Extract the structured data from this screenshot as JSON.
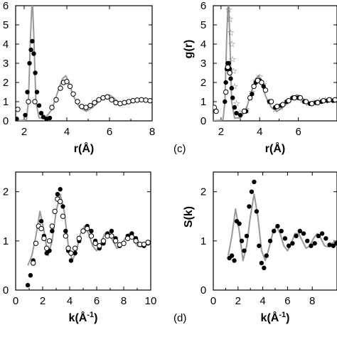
{
  "chart_data": [
    {
      "type": "scatter",
      "panel_label": "",
      "xlabel": "r(Å)",
      "ylabel": "",
      "xlim": [
        1.6,
        8.0
      ],
      "ylim": [
        0,
        6
      ],
      "xticks": [
        2,
        4,
        6,
        8
      ],
      "yticks": [
        0,
        1,
        2,
        3,
        4,
        5,
        6
      ],
      "series": [
        {
          "style": "line",
          "color": "#999999",
          "x": [
            1.6,
            2.1,
            2.2,
            2.3,
            2.38,
            2.45,
            2.55,
            2.7,
            3.0,
            3.3,
            3.6,
            3.8,
            3.95,
            4.1,
            4.3,
            4.6,
            4.9,
            5.2,
            5.5,
            5.8,
            6.0,
            6.2,
            6.5,
            6.8,
            7.1,
            7.4,
            7.7,
            8.0
          ],
          "y": [
            0,
            0.05,
            1.0,
            4.5,
            6.5,
            4.5,
            1.0,
            0.15,
            0.15,
            0.6,
            1.6,
            2.2,
            2.35,
            2.0,
            1.3,
            0.7,
            0.5,
            0.7,
            1.0,
            1.3,
            1.35,
            1.2,
            0.9,
            0.9,
            1.0,
            1.1,
            1.1,
            1.05
          ]
        },
        {
          "style": "filled",
          "color": "#000000",
          "x": [
            1.65,
            2.05,
            2.15,
            2.25,
            2.32,
            2.38,
            2.45,
            2.52,
            2.6,
            2.7,
            2.8,
            2.9,
            3.05,
            3.2
          ],
          "y": [
            0.1,
            0.3,
            1.5,
            3.0,
            3.7,
            4.15,
            3.5,
            2.5,
            1.5,
            0.8,
            0.4,
            0.2,
            0.1,
            0.15
          ]
        },
        {
          "style": "open",
          "color": "#000000",
          "x": [
            1.7,
            2.2,
            2.5,
            3.3,
            3.5,
            3.7,
            3.85,
            4.0,
            4.15,
            4.3,
            4.5,
            4.7,
            4.9,
            5.1,
            5.3,
            5.5,
            5.7,
            5.9,
            6.1,
            6.3,
            6.5,
            6.7,
            6.9,
            7.1,
            7.3,
            7.5,
            7.7,
            7.9
          ],
          "y": [
            0.6,
            1.0,
            1.0,
            0.7,
            1.1,
            1.7,
            2.0,
            2.05,
            1.8,
            1.4,
            1.0,
            0.75,
            0.7,
            0.8,
            0.95,
            1.1,
            1.2,
            1.25,
            1.1,
            0.95,
            0.9,
            0.95,
            1.0,
            1.05,
            1.08,
            1.1,
            1.08,
            1.05
          ]
        }
      ]
    },
    {
      "type": "scatter",
      "panel_label": "(c)",
      "xlabel": "r(Å)",
      "ylabel": "g(r)",
      "xlim": [
        1.6,
        8.0
      ],
      "ylim": [
        0,
        6
      ],
      "xticks": [
        2,
        4,
        6
      ],
      "yticks": [
        0,
        1,
        2,
        3,
        4,
        5,
        6
      ],
      "series": [
        {
          "style": "line",
          "color": "#999999",
          "x": [
            1.6,
            2.1,
            2.2,
            2.3,
            2.38,
            2.45,
            2.55,
            2.7,
            3.0,
            3.3,
            3.6,
            3.8,
            3.95,
            4.1,
            4.3,
            4.6,
            4.9,
            5.2,
            5.5,
            5.8,
            6.0,
            6.2,
            6.5,
            6.8,
            7.1,
            7.4,
            7.7,
            8.0
          ],
          "y": [
            0,
            0.05,
            1.0,
            4.5,
            6.5,
            4.5,
            1.0,
            0.15,
            0.15,
            0.6,
            1.6,
            2.2,
            2.35,
            2.0,
            1.3,
            0.7,
            0.5,
            0.7,
            1.0,
            1.3,
            1.35,
            1.2,
            0.9,
            0.9,
            1.0,
            1.1,
            1.1,
            1.05
          ]
        },
        {
          "style": "star",
          "color": "#555555",
          "x": [
            2.4,
            2.45,
            2.5,
            2.55,
            2.6,
            2.65,
            2.7,
            2.8,
            3.0,
            3.3,
            3.6,
            3.8,
            4.0,
            4.2,
            4.5,
            4.8,
            5.1,
            5.4,
            5.7,
            5.9,
            6.2,
            6.5,
            6.8,
            7.1,
            7.4,
            7.7,
            8.0
          ],
          "y": [
            5.8,
            5.3,
            4.6,
            4.0,
            3.2,
            2.6,
            1.8,
            0.9,
            0.4,
            0.6,
            1.5,
            2.1,
            2.3,
            1.9,
            1.0,
            0.6,
            0.7,
            1.0,
            1.2,
            1.25,
            1.1,
            0.9,
            0.95,
            1.05,
            1.1,
            1.1,
            1.05
          ]
        },
        {
          "style": "filled",
          "color": "#000000",
          "x": [
            2.2,
            2.25,
            2.3,
            2.35,
            2.4,
            2.45,
            2.5,
            2.55,
            2.6,
            2.7,
            2.8,
            3.0,
            3.3,
            3.6,
            3.8,
            4.0,
            4.2,
            4.5,
            4.8,
            5.1,
            5.4,
            5.7,
            6.0,
            6.3,
            6.6,
            6.9,
            7.2,
            7.5,
            7.8
          ],
          "y": [
            1.0,
            2.0,
            2.7,
            3.0,
            3.0,
            2.7,
            2.2,
            1.7,
            1.2,
            0.7,
            0.4,
            0.3,
            0.5,
            1.4,
            2.0,
            2.1,
            1.8,
            1.0,
            0.7,
            0.8,
            1.0,
            1.2,
            1.2,
            1.0,
            0.9,
            0.95,
            1.0,
            1.05,
            1.05
          ]
        },
        {
          "style": "open",
          "color": "#000000",
          "x": [
            1.65,
            1.75,
            2.25,
            2.35,
            2.45,
            3.2,
            3.5,
            3.7,
            3.9,
            4.1,
            4.3,
            4.6,
            4.9,
            5.2,
            5.5,
            5.8,
            6.1,
            6.4,
            6.7,
            7.0,
            7.3,
            7.6,
            7.9
          ],
          "y": [
            0.7,
            0.5,
            1.5,
            2.8,
            2.5,
            0.5,
            1.2,
            1.8,
            2.1,
            2.0,
            1.6,
            1.0,
            0.75,
            0.85,
            1.05,
            1.2,
            1.2,
            1.0,
            0.9,
            0.95,
            1.05,
            1.1,
            1.1
          ]
        }
      ]
    },
    {
      "type": "scatter",
      "panel_label": "",
      "xlabel": "k(Å-1)",
      "ylabel": "",
      "xlim": [
        0,
        10
      ],
      "ylim": [
        0,
        2.4
      ],
      "xticks": [
        0,
        2,
        4,
        6,
        8,
        10
      ],
      "yticks": [
        0,
        1,
        2
      ],
      "series": [
        {
          "style": "line",
          "color": "#999999",
          "x": [
            0.9,
            1.2,
            1.5,
            1.8,
            2.1,
            2.4,
            2.7,
            3.0,
            3.3,
            3.6,
            3.9,
            4.2,
            4.5,
            4.8,
            5.1,
            5.4,
            5.7,
            6.0,
            6.3,
            6.6,
            6.9,
            7.2,
            7.5,
            7.8,
            8.1,
            8.4,
            8.7,
            9.0,
            9.3,
            9.6,
            9.9
          ],
          "y": [
            0.5,
            0.7,
            1.1,
            1.6,
            1.2,
            0.7,
            1.0,
            1.6,
            1.95,
            1.6,
            0.9,
            0.6,
            0.8,
            1.15,
            1.3,
            1.15,
            0.9,
            0.8,
            0.95,
            1.15,
            1.15,
            1.0,
            0.85,
            0.9,
            1.05,
            1.15,
            1.05,
            0.9,
            0.88,
            0.95,
            1.0
          ]
        },
        {
          "style": "filled",
          "color": "#000000",
          "x": [
            0.9,
            1.1,
            1.3,
            1.5,
            1.7,
            1.9,
            2.1,
            2.3,
            2.5,
            2.7,
            2.9,
            3.1,
            3.3,
            3.5,
            3.7,
            3.9,
            4.1,
            4.4,
            4.7,
            5.0,
            5.3,
            5.6,
            5.9,
            6.2,
            6.5,
            6.8,
            7.1,
            7.4,
            7.7,
            8.0,
            8.3,
            8.6,
            8.9,
            9.2,
            9.5,
            9.8
          ],
          "y": [
            0.1,
            0.3,
            0.6,
            0.95,
            1.3,
            1.4,
            1.1,
            0.75,
            0.8,
            1.2,
            1.6,
            1.95,
            2.05,
            1.7,
            1.2,
            0.8,
            0.6,
            0.75,
            1.0,
            1.2,
            1.3,
            1.2,
            1.0,
            0.85,
            0.95,
            1.15,
            1.2,
            1.05,
            0.9,
            0.95,
            1.1,
            1.15,
            1.05,
            0.92,
            0.9,
            0.95
          ]
        },
        {
          "style": "open",
          "color": "#000000",
          "x": [
            1.3,
            1.5,
            1.7,
            1.9,
            2.1,
            2.3,
            2.5,
            2.7,
            2.9,
            3.1,
            3.3,
            3.5,
            3.7,
            3.9,
            4.1,
            4.4,
            4.7,
            5.0,
            5.3,
            5.6,
            5.9,
            6.2,
            6.5,
            6.8,
            7.1,
            7.4,
            7.7,
            8.0,
            8.3,
            8.6,
            8.9,
            9.2,
            9.5,
            9.8
          ],
          "y": [
            0.55,
            0.95,
            1.3,
            1.25,
            1.05,
            0.85,
            1.0,
            1.3,
            1.6,
            1.85,
            1.8,
            1.5,
            1.1,
            0.85,
            0.75,
            0.85,
            1.05,
            1.2,
            1.25,
            1.1,
            0.95,
            0.9,
            1.0,
            1.1,
            1.1,
            1.0,
            0.92,
            0.95,
            1.05,
            1.08,
            1.0,
            0.93,
            0.93,
            0.97
          ]
        }
      ]
    },
    {
      "type": "scatter",
      "panel_label": "(d)",
      "xlabel": "k(Å-1)",
      "ylabel": "S(k)",
      "xlim": [
        0,
        10
      ],
      "ylim": [
        0,
        2.4
      ],
      "xticks": [
        0,
        2,
        4,
        6,
        8
      ],
      "yticks": [
        0,
        1,
        2
      ],
      "series": [
        {
          "style": "line",
          "color": "#999999",
          "x": [
            1.2,
            1.5,
            1.8,
            2.1,
            2.4,
            2.7,
            3.0,
            3.3,
            3.6,
            3.9,
            4.2,
            4.5,
            4.8,
            5.1,
            5.4,
            5.7,
            6.0,
            6.3,
            6.6,
            6.9,
            7.2,
            7.5,
            7.8,
            8.1,
            8.4,
            8.7,
            9.0,
            9.3,
            9.6,
            9.9
          ],
          "y": [
            0.7,
            1.1,
            1.65,
            1.2,
            0.6,
            0.9,
            1.5,
            1.95,
            1.5,
            0.8,
            0.6,
            0.85,
            1.15,
            1.3,
            1.15,
            0.9,
            0.8,
            0.95,
            1.15,
            1.15,
            1.0,
            0.85,
            0.9,
            1.05,
            1.15,
            1.05,
            0.9,
            0.88,
            0.95,
            1.0
          ]
        },
        {
          "style": "filled",
          "color": "#000000",
          "x": [
            1.3,
            1.5,
            1.7,
            1.9,
            2.1,
            2.3,
            2.5,
            2.7,
            2.9,
            3.1,
            3.3,
            3.5,
            3.7,
            3.9,
            4.1,
            4.3,
            4.6,
            4.9,
            5.2,
            5.5,
            5.8,
            6.1,
            6.4,
            6.7,
            7.0,
            7.3,
            7.6,
            7.9,
            8.2,
            8.5,
            8.8,
            9.1,
            9.4,
            9.7,
            9.95
          ],
          "y": [
            0.65,
            0.7,
            0.6,
            1.4,
            1.35,
            1.0,
            0.8,
            1.1,
            1.7,
            2.0,
            2.2,
            1.6,
            0.9,
            0.55,
            0.45,
            0.7,
            1.0,
            1.2,
            1.3,
            1.2,
            1.05,
            0.9,
            0.95,
            1.1,
            1.2,
            1.15,
            1.0,
            0.9,
            0.95,
            1.1,
            1.15,
            1.05,
            0.92,
            0.9,
            0.95
          ]
        }
      ]
    }
  ]
}
